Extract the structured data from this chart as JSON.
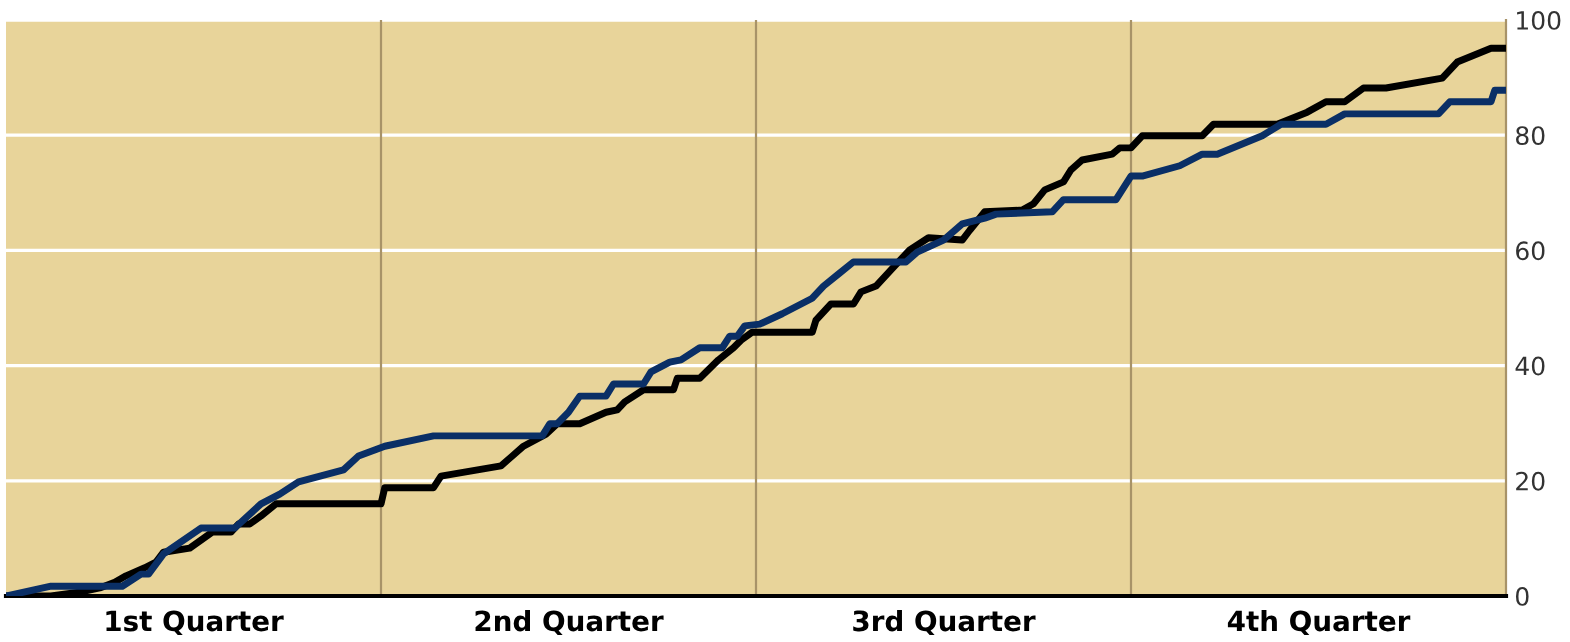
{
  "chart_data": {
    "type": "line",
    "xlim": [
      0,
      4
    ],
    "ylim": [
      0,
      100
    ],
    "xticks": [
      {
        "value": 0.5,
        "label": "1st Quarter"
      },
      {
        "value": 1.5,
        "label": "2nd Quarter"
      },
      {
        "value": 2.5,
        "label": "3rd Quarter"
      },
      {
        "value": 3.5,
        "label": "4th Quarter"
      }
    ],
    "yticks": [
      0,
      20,
      40,
      60,
      80,
      100
    ],
    "grid": "y",
    "legend": false,
    "marker": "none",
    "line_style": "solid",
    "ref_lines": [
      {
        "axis": "x",
        "value": 1,
        "color": "#a89368"
      },
      {
        "axis": "x",
        "value": 2,
        "color": "#a89368"
      },
      {
        "axis": "x",
        "value": 3,
        "color": "#a89368"
      }
    ],
    "series": [
      {
        "color": "#000000",
        "x": [
          0,
          0.12,
          0.2,
          0.25,
          0.29,
          0.32,
          0.37,
          0.4,
          0.42,
          0.49,
          0.52,
          0.55,
          0.6,
          0.62,
          0.65,
          0.68,
          0.72,
          1.0,
          1.01,
          1.14,
          1.16,
          1.32,
          1.38,
          1.44,
          1.47,
          1.53,
          1.6,
          1.63,
          1.65,
          1.7,
          1.78,
          1.79,
          1.85,
          1.9,
          1.94,
          1.96,
          1.99,
          2.15,
          2.16,
          2.2,
          2.26,
          2.28,
          2.32,
          2.36,
          2.41,
          2.46,
          2.55,
          2.57,
          2.61,
          2.71,
          2.74,
          2.77,
          2.82,
          2.84,
          2.87,
          2.95,
          2.97,
          3.0,
          3.03,
          3.19,
          3.22,
          3.39,
          3.47,
          3.52,
          3.57,
          3.62,
          3.68,
          3.83,
          3.87,
          3.96,
          4.0
        ],
        "values": [
          0,
          0,
          0.7,
          1.4,
          2.4,
          3.5,
          4.9,
          5.9,
          7.6,
          8.3,
          9.7,
          11.1,
          11.1,
          12.5,
          12.5,
          13.9,
          16.0,
          16.0,
          18.8,
          18.8,
          20.8,
          22.6,
          26.0,
          28.1,
          29.9,
          29.9,
          31.9,
          32.3,
          33.7,
          35.8,
          35.8,
          37.8,
          37.8,
          41.0,
          43.1,
          44.4,
          45.8,
          45.8,
          47.9,
          50.7,
          50.7,
          52.8,
          53.8,
          56.6,
          60.1,
          62.2,
          61.8,
          63.5,
          66.7,
          67.0,
          68.1,
          70.5,
          71.9,
          74.0,
          75.7,
          76.7,
          77.8,
          77.8,
          79.9,
          79.9,
          81.9,
          81.9,
          84.0,
          85.8,
          85.8,
          88.2,
          88.2,
          89.9,
          92.7,
          95.1,
          95.1
        ]
      },
      {
        "color": "#0a2f66",
        "x": [
          0,
          0.12,
          0.31,
          0.36,
          0.38,
          0.42,
          0.52,
          0.61,
          0.68,
          0.73,
          0.78,
          0.9,
          0.94,
          1.01,
          1.14,
          1.43,
          1.45,
          1.47,
          1.5,
          1.53,
          1.6,
          1.62,
          1.7,
          1.72,
          1.77,
          1.8,
          1.85,
          1.91,
          1.93,
          1.95,
          1.97,
          2.01,
          2.07,
          2.15,
          2.18,
          2.22,
          2.26,
          2.4,
          2.43,
          2.5,
          2.55,
          2.61,
          2.64,
          2.79,
          2.82,
          2.96,
          3.0,
          3.03,
          3.13,
          3.19,
          3.23,
          3.35,
          3.4,
          3.52,
          3.57,
          3.82,
          3.85,
          3.96,
          3.97,
          4.0
        ],
        "values": [
          0,
          1.7,
          1.7,
          3.8,
          3.8,
          7.3,
          11.8,
          11.8,
          16.0,
          17.7,
          19.8,
          21.9,
          24.3,
          26.0,
          27.8,
          27.8,
          29.9,
          29.9,
          31.9,
          34.7,
          34.7,
          36.8,
          36.8,
          38.9,
          40.6,
          41.0,
          43.1,
          43.1,
          45.1,
          45.1,
          46.9,
          47.2,
          49.0,
          51.7,
          53.8,
          55.9,
          58.0,
          58.0,
          59.7,
          61.8,
          64.6,
          65.6,
          66.3,
          66.7,
          68.8,
          68.8,
          72.9,
          72.9,
          74.7,
          76.7,
          76.7,
          79.9,
          81.9,
          81.9,
          83.7,
          83.7,
          85.8,
          85.8,
          87.8,
          87.8
        ]
      }
    ]
  }
}
